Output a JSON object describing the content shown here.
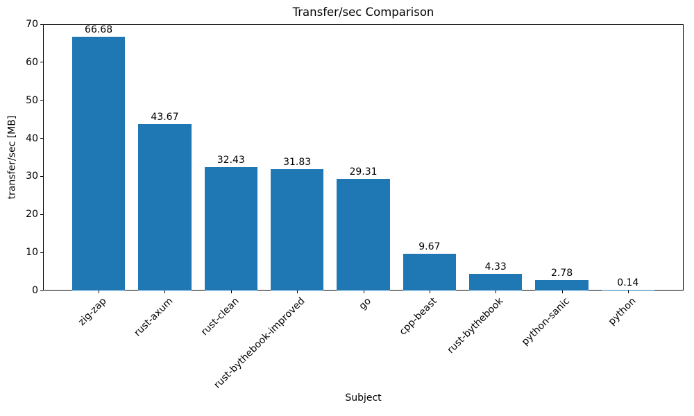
{
  "chart_data": {
    "type": "bar",
    "title": "Transfer/sec Comparison",
    "xlabel": "Subject",
    "ylabel": "transfer/sec [MB]",
    "categories": [
      "zig-zap",
      "rust-axum",
      "rust-clean",
      "rust-bythebook-improved",
      "go",
      "cpp-beast",
      "rust-bythebook",
      "python-sanic",
      "python"
    ],
    "values": [
      66.68,
      43.67,
      32.43,
      31.83,
      29.31,
      9.67,
      4.33,
      2.78,
      0.14
    ],
    "bar_value_labels": [
      "66.68",
      "43.67",
      "32.43",
      "31.83",
      "29.31",
      "9.67",
      "4.33",
      "2.78",
      "0.14"
    ],
    "ylim": [
      0,
      70
    ],
    "yticks": [
      0,
      10,
      20,
      30,
      40,
      50,
      60,
      70
    ],
    "ytick_labels": [
      "0",
      "10",
      "20",
      "30",
      "40",
      "50",
      "60",
      "70"
    ],
    "xtick_label_rotation_deg": 45,
    "grid": false,
    "legend": null,
    "colors": {
      "bar": "#1f77b4",
      "text": "#000000",
      "spine": "#000000",
      "background": "#ffffff"
    }
  }
}
